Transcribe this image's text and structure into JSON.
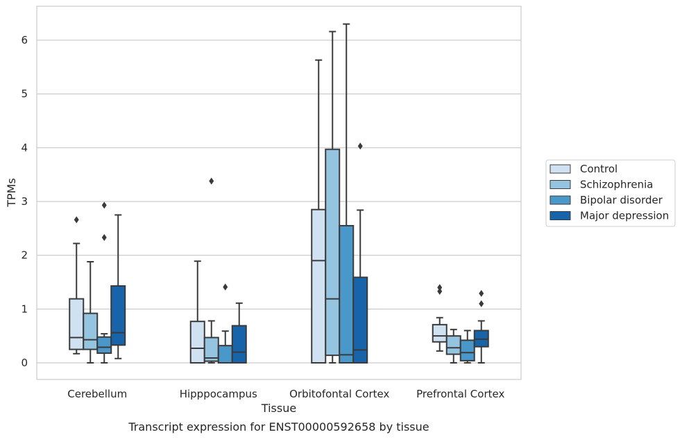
{
  "caption": "Transcript expression for ENST00000592658 by tissue",
  "chart_data": {
    "type": "boxplot",
    "xlabel": "Tissue",
    "ylabel": "TPMs",
    "ylim": [
      -0.3,
      6.65
    ],
    "yticks": [
      0,
      1,
      2,
      3,
      4,
      5,
      6
    ],
    "grid": "horizontal",
    "legend_position": "right",
    "categories": [
      "Cerebellum",
      "Hipppocampus",
      "Orbitofontal Cortex",
      "Prefrontal Cortex"
    ],
    "series": [
      {
        "name": "Control",
        "color": "#d0e1f2",
        "boxes": [
          {
            "whislo": 0.17,
            "q1": 0.25,
            "med": 0.47,
            "q3": 1.19,
            "whishi": 2.22,
            "fliers": [
              2.66
            ]
          },
          {
            "whislo": 0.0,
            "q1": 0.0,
            "med": 0.27,
            "q3": 0.77,
            "whishi": 1.89,
            "fliers": []
          },
          {
            "whislo": 0.0,
            "q1": 0.0,
            "med": 1.9,
            "q3": 2.85,
            "whishi": 5.63,
            "fliers": []
          },
          {
            "whislo": 0.22,
            "q1": 0.39,
            "med": 0.5,
            "q3": 0.71,
            "whishi": 0.84,
            "fliers": [
              1.33,
              1.4
            ]
          }
        ]
      },
      {
        "name": "Schizophrenia",
        "color": "#94c4df",
        "boxes": [
          {
            "whislo": 0.0,
            "q1": 0.25,
            "med": 0.43,
            "q3": 0.92,
            "whishi": 1.88,
            "fliers": []
          },
          {
            "whislo": 0.0,
            "q1": 0.03,
            "med": 0.09,
            "q3": 0.47,
            "whishi": 0.78,
            "fliers": [
              3.38
            ]
          },
          {
            "whislo": 0.0,
            "q1": 0.14,
            "med": 1.19,
            "q3": 3.97,
            "whishi": 6.16,
            "fliers": []
          },
          {
            "whislo": 0.0,
            "q1": 0.16,
            "med": 0.28,
            "q3": 0.5,
            "whishi": 0.62,
            "fliers": []
          }
        ]
      },
      {
        "name": "Bipolar disorder",
        "color": "#4a98c9",
        "boxes": [
          {
            "whislo": 0.0,
            "q1": 0.18,
            "med": 0.29,
            "q3": 0.48,
            "whishi": 0.54,
            "fliers": [
              2.33,
              2.93
            ]
          },
          {
            "whislo": 0.0,
            "q1": 0.0,
            "med": 0.0,
            "q3": 0.32,
            "whishi": 0.59,
            "fliers": [
              1.41
            ]
          },
          {
            "whislo": 0.0,
            "q1": 0.0,
            "med": 0.15,
            "q3": 2.55,
            "whishi": 6.3,
            "fliers": []
          },
          {
            "whislo": 0.0,
            "q1": 0.04,
            "med": 0.19,
            "q3": 0.42,
            "whishi": 0.6,
            "fliers": []
          }
        ]
      },
      {
        "name": "Major depression",
        "color": "#1764ab",
        "boxes": [
          {
            "whislo": 0.08,
            "q1": 0.33,
            "med": 0.56,
            "q3": 1.43,
            "whishi": 2.75,
            "fliers": []
          },
          {
            "whislo": 0.0,
            "q1": 0.0,
            "med": 0.2,
            "q3": 0.69,
            "whishi": 1.11,
            "fliers": []
          },
          {
            "whislo": 0.0,
            "q1": 0.0,
            "med": 0.24,
            "q3": 1.59,
            "whishi": 2.84,
            "fliers": [
              4.03
            ]
          },
          {
            "whislo": 0.0,
            "q1": 0.3,
            "med": 0.44,
            "q3": 0.6,
            "whishi": 0.78,
            "fliers": [
              1.1,
              1.29
            ]
          }
        ]
      }
    ]
  }
}
